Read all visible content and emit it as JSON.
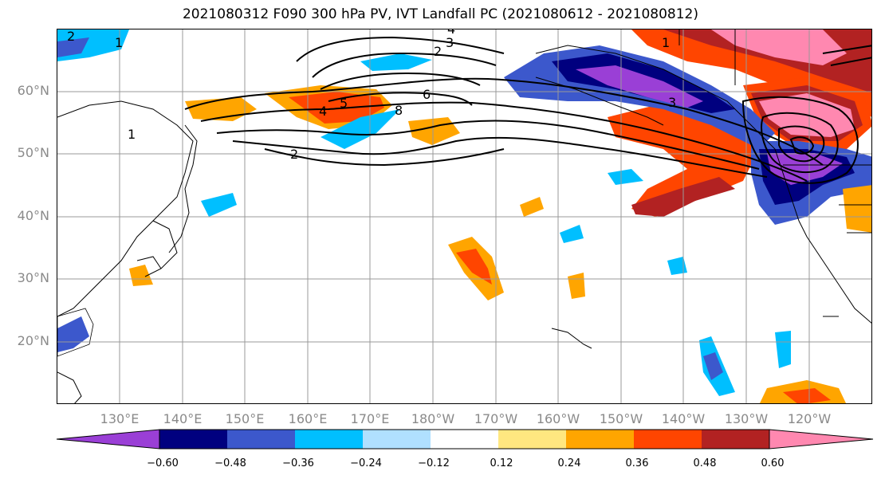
{
  "title": "2021080312 F090 300 hPa PV, IVT Landfall PC (2021080612 - 2021080812)",
  "lat_labels": [
    "60°N",
    "50°N",
    "40°N",
    "30°N",
    "20°N"
  ],
  "lon_labels": [
    "130°E",
    "140°E",
    "150°E",
    "160°E",
    "170°E",
    "180°W",
    "170°W",
    "160°W",
    "150°W",
    "140°W",
    "130°W",
    "120°W"
  ],
  "contour_labels": [
    "2",
    "1",
    "4",
    "3",
    "2",
    "6",
    "8",
    "5",
    "4",
    "1",
    "2",
    "1",
    "3"
  ],
  "colorbar": {
    "ticks": [
      "−0.60",
      "−0.48",
      "−0.36",
      "−0.24",
      "−0.12",
      "0.12",
      "0.24",
      "0.36",
      "0.48",
      "0.60"
    ],
    "colors": [
      "#9a3fd6",
      "#00007f",
      "#3c58cc",
      "#00bfff",
      "#b0e0ff",
      "#ffffff",
      "#ffe780",
      "#ffa500",
      "#ff4500",
      "#b22222",
      "#ff88b0"
    ]
  }
}
